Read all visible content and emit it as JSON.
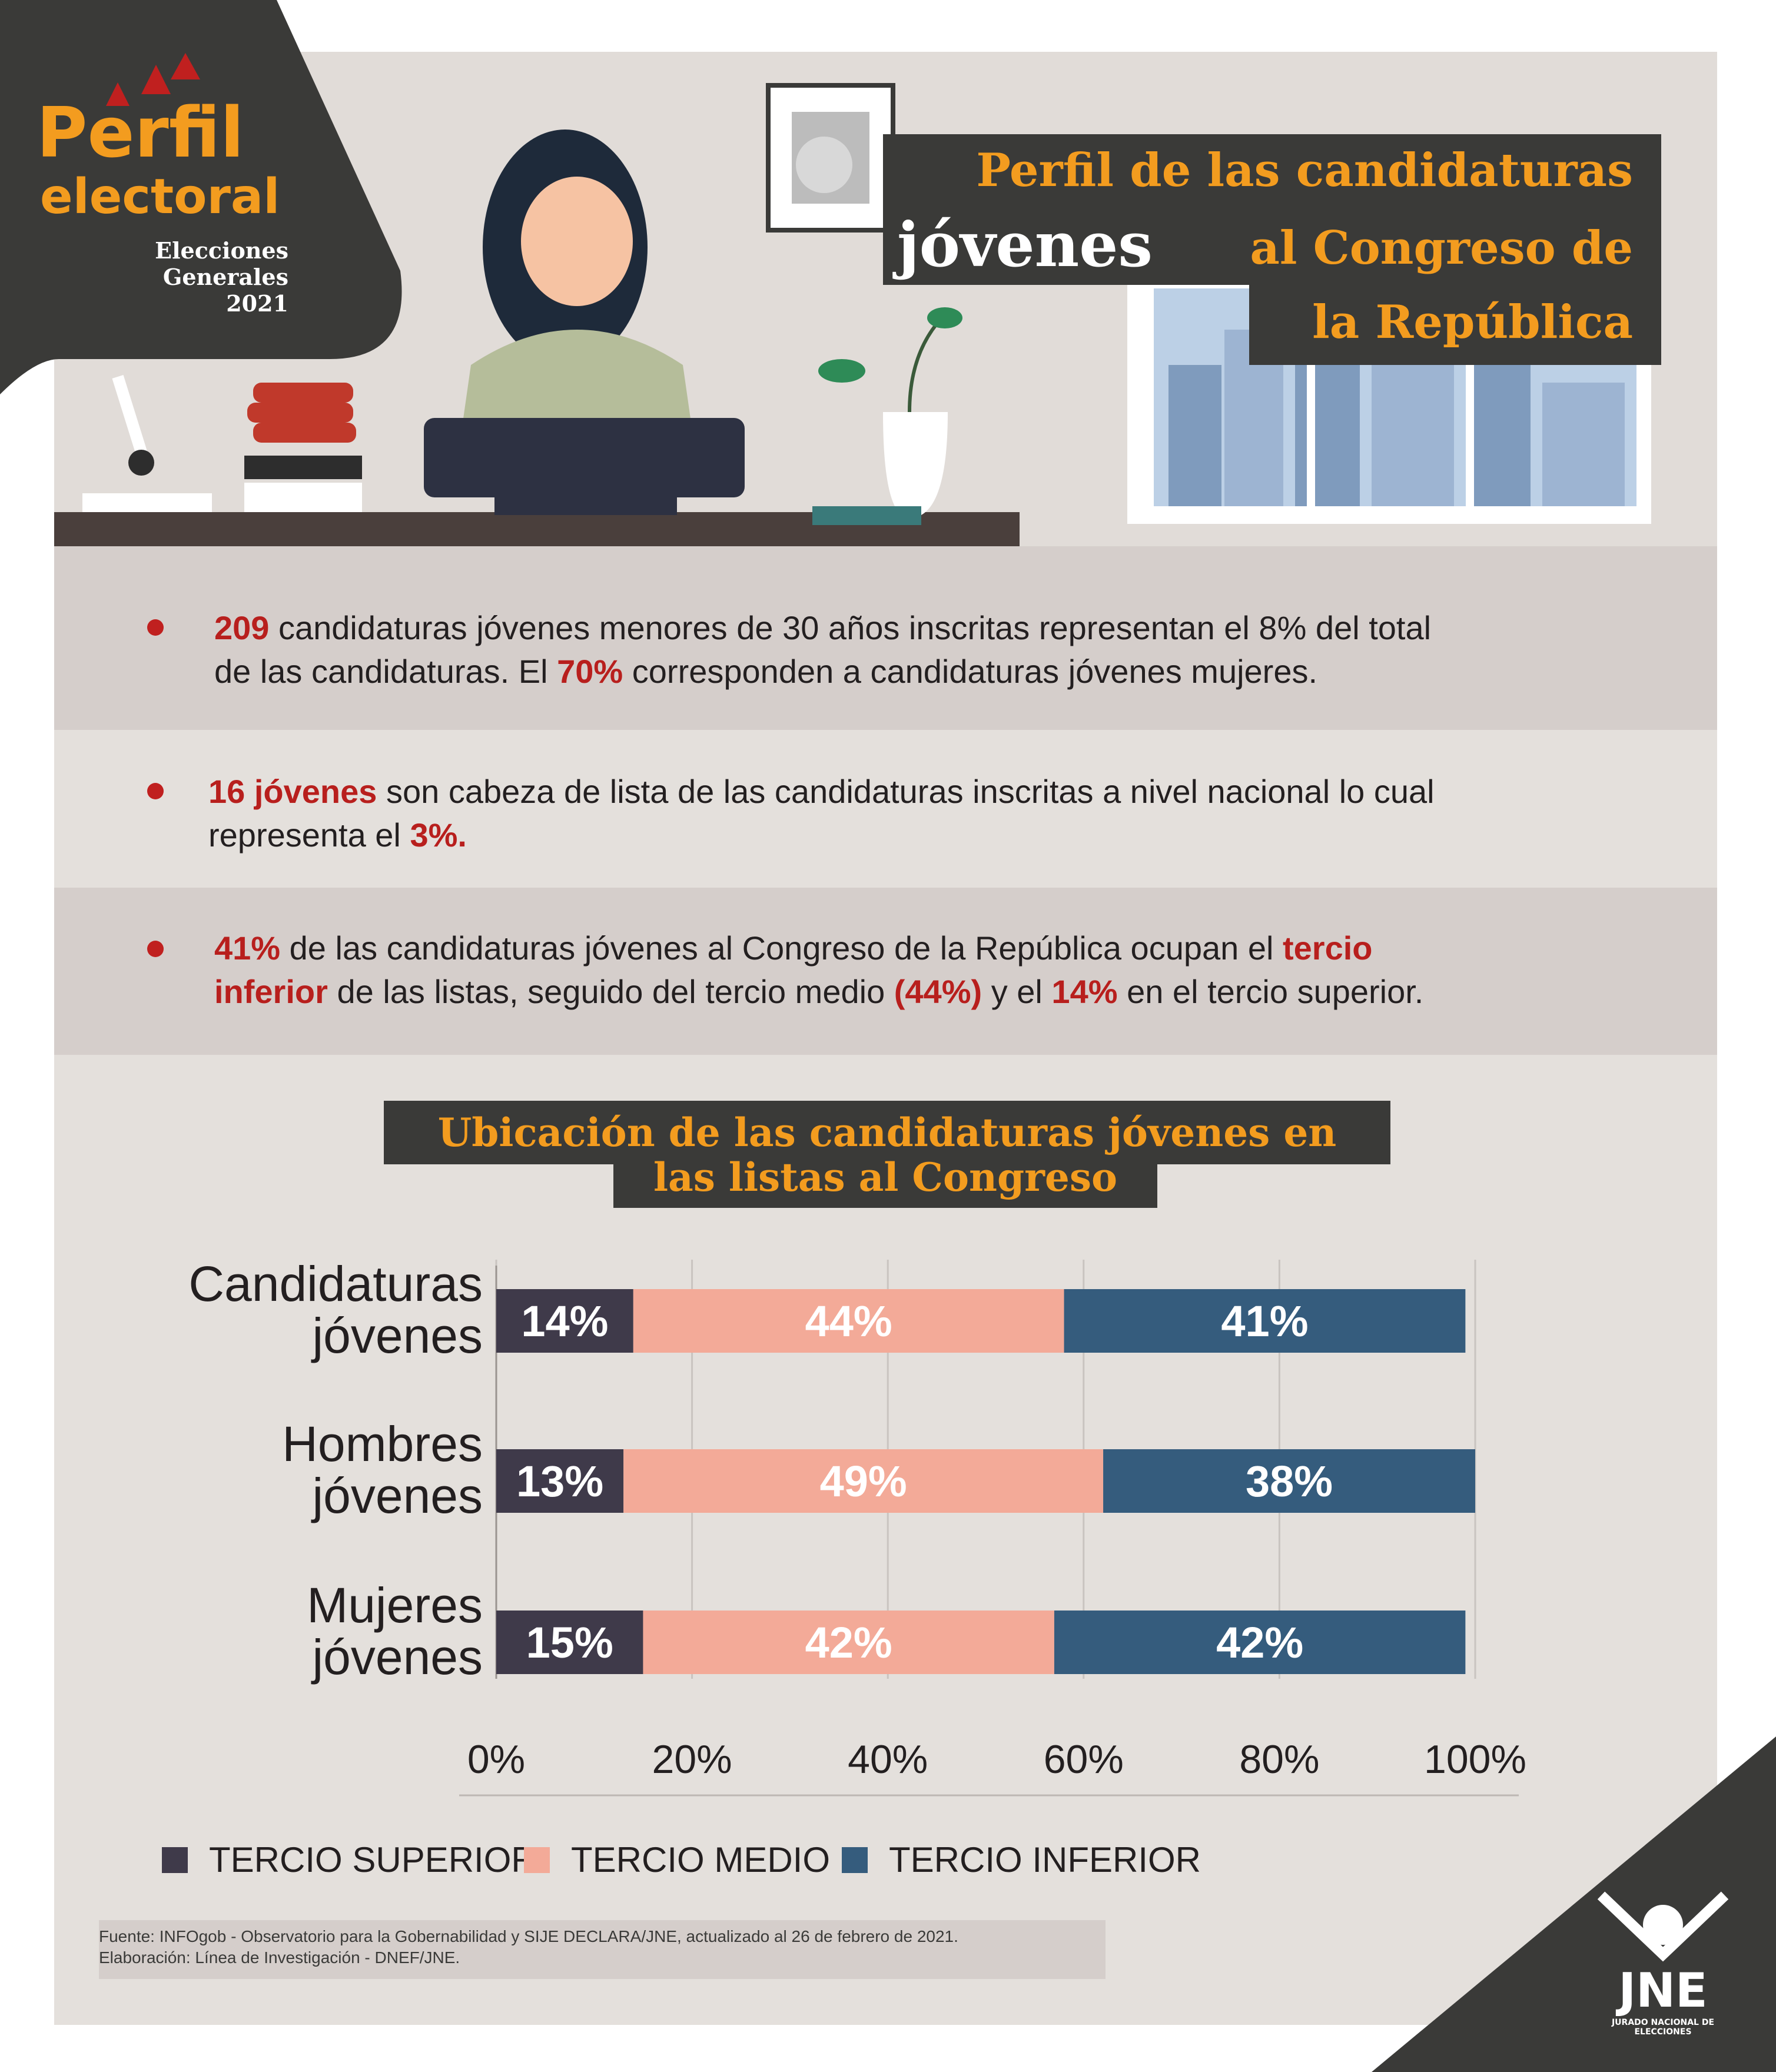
{
  "brand": {
    "logo_title": "Perfil",
    "logo_subtitle": "electoral",
    "event_line1": "Elecciones",
    "event_line2": "Generales",
    "event_year": "2021"
  },
  "header": {
    "title_line1": "Perfil de las candidaturas",
    "title_line2_white": "jóvenes",
    "title_line2_orange": "al Congreso de",
    "title_line3": "la República"
  },
  "bullets": [
    {
      "p1": "209",
      "t1": " candidaturas jóvenes menores de 30 años inscritas representan el 8% del total",
      "t2": "de las candidaturas. El ",
      "p2": "70%",
      "t3": " corresponden a candidaturas jóvenes mujeres."
    },
    {
      "p1": "16 jóvenes",
      "t1": " son cabeza de lista de las candidaturas inscritas a nivel nacional lo cual",
      "t2": "representa el ",
      "p2": "3%."
    },
    {
      "p1": "41%",
      "t1": " de las candidaturas jóvenes al Congreso de la República ocupan el ",
      "p2": "tercio",
      "p3": "inferior",
      "t2": " de las listas, seguido del tercio medio ",
      "p4": "(44%)",
      "t3": " y el ",
      "p5": "14%",
      "t4": " en el tercio superior."
    }
  ],
  "chart_title_line1": "Ubicación de las candidaturas jóvenes en",
  "chart_title_line2": "las listas al Congreso",
  "chart_data": {
    "type": "bar",
    "orientation": "horizontal",
    "stacked": true,
    "categories": [
      "Candidaturas jóvenes",
      "Hombres jóvenes",
      "Mujeres jóvenes"
    ],
    "category_lines": [
      [
        "Candidaturas",
        "jóvenes"
      ],
      [
        "Hombres",
        "jóvenes"
      ],
      [
        "Mujeres",
        "jóvenes"
      ]
    ],
    "series": [
      {
        "name": "TERCIO SUPERIOR",
        "values": [
          14,
          13,
          15
        ],
        "labels": [
          "14%",
          "13%",
          "15%"
        ],
        "color": "#3f3a4a"
      },
      {
        "name": "TERCIO MEDIO",
        "values": [
          44,
          49,
          42
        ],
        "labels": [
          "44%",
          "49%",
          "42%"
        ],
        "color": "#f3aa98"
      },
      {
        "name": "TERCIO INFERIOR",
        "values": [
          41,
          38,
          42
        ],
        "labels": [
          "41%",
          "38%",
          "42%"
        ],
        "color": "#355c7d"
      }
    ],
    "x_ticks": [
      "0%",
      "20%",
      "40%",
      "60%",
      "80%",
      "100%"
    ],
    "xlim": [
      0,
      100
    ],
    "grid": true,
    "legend_position": "bottom"
  },
  "source_line1": "Fuente: INFOgob - Observatorio para la Gobernabilidad y SIJE DECLARA/JNE, actualizado al 26 de febrero de 2021.",
  "source_line2": "Elaboración: Línea de Investigación - DNEF/JNE.",
  "footer_logo": {
    "text": "JNE",
    "subtitle": "JURADO NACIONAL DE ELECCIONES"
  },
  "colors": {
    "accent_orange": "#f39c1f",
    "highlight_red": "#b81f1d",
    "dark": "#3a3a38"
  }
}
